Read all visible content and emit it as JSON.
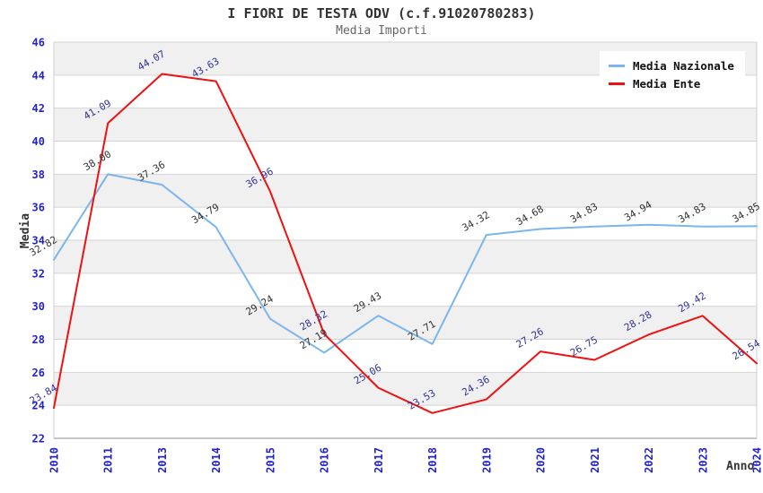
{
  "page": {
    "background": "#ffffff"
  },
  "chart_data": {
    "type": "line",
    "title": "I FIORI DE TESTA ODV (c.f.91020780283)",
    "subtitle": "Media Importi",
    "xlabel": "Anno",
    "ylabel": "Media",
    "x": [
      "2010",
      "2011",
      "2013",
      "2014",
      "2015",
      "2016",
      "2017",
      "2018",
      "2019",
      "2020",
      "2021",
      "2022",
      "2023",
      "2024"
    ],
    "ylim": [
      22,
      46
    ],
    "ytick_step": 2,
    "grid": true,
    "alternating_bands": true,
    "legend_position": "top-right",
    "tick_label_color": "#2222cc",
    "band_color": "#f0f0f0",
    "gridline_color": "#d4d4d4",
    "series": [
      {
        "name": "Media Nazionale",
        "color": "#7cb5ec",
        "label_color": "#333333",
        "values": [
          32.82,
          38.0,
          37.36,
          34.79,
          29.24,
          27.19,
          29.43,
          27.71,
          34.32,
          34.68,
          34.83,
          34.94,
          34.83,
          34.85
        ]
      },
      {
        "name": "Media Ente",
        "color": "#ee1111",
        "label_color": "#333399",
        "values": [
          23.84,
          41.09,
          44.07,
          43.63,
          36.96,
          28.32,
          25.06,
          23.53,
          24.36,
          27.26,
          26.75,
          28.28,
          29.42,
          26.54
        ]
      }
    ]
  }
}
